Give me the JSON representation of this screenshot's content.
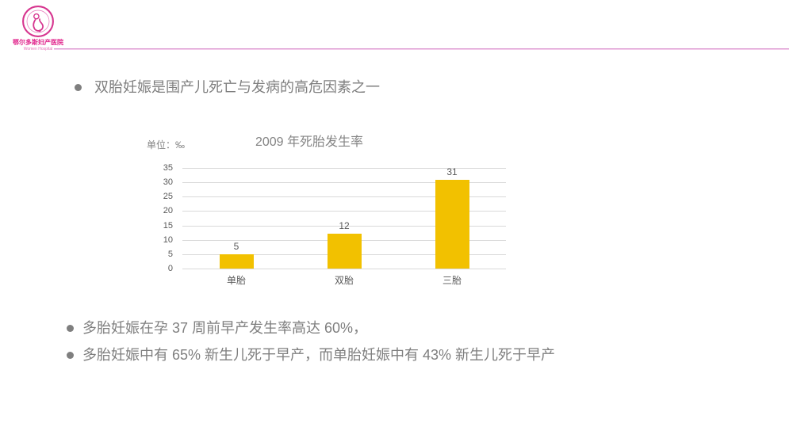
{
  "logo": {
    "hospital_name": "鄂尔多斯妇产医院",
    "hospital_name_en": "Women  Hospital"
  },
  "colors": {
    "accent_pink": "#E0218A",
    "divider_pink": "#DD9AD2",
    "text_gray": "#7F7F7F",
    "axis_gray": "#595959",
    "gridline_gray": "#D9D9D9"
  },
  "bullets": {
    "top": "双胎妊娠是围产儿死亡与发病的高危因素之一",
    "bottom": [
      "多胎妊娠在孕 37 周前早产发生率高达 60%，",
      "多胎妊娠中有 65% 新生儿死于早产，而单胎妊娠中有 43% 新生儿死于早产"
    ]
  },
  "chart": {
    "unit_label": "单位：‰"
  },
  "chart_data": {
    "type": "bar",
    "title": "2009 年死胎发生率",
    "categories": [
      "单胎",
      "双胎",
      "三胎"
    ],
    "values": [
      5,
      12,
      31
    ],
    "unit": "‰",
    "xlabel": "",
    "ylabel": "",
    "ylim": [
      0,
      35
    ],
    "yticks": [
      0,
      5,
      10,
      15,
      20,
      25,
      30,
      35
    ],
    "grid": true,
    "legend": false,
    "data_labels": true,
    "bar_color": "#F2C100"
  }
}
